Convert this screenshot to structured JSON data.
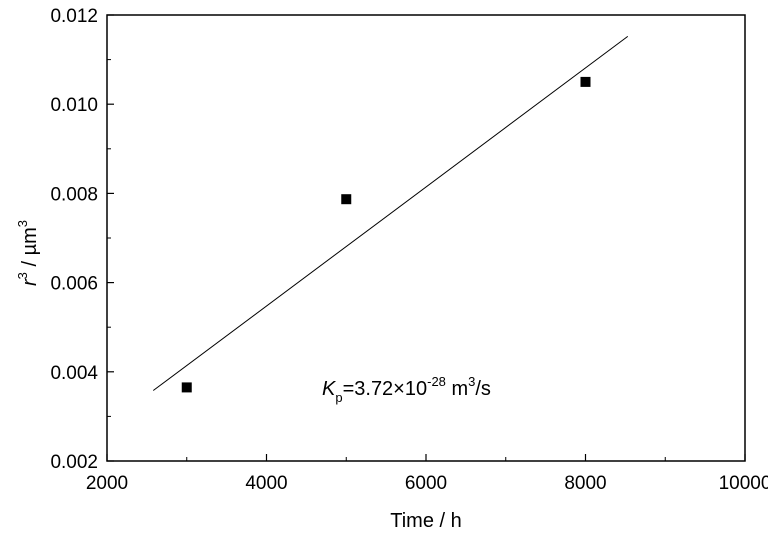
{
  "chart_data": {
    "type": "scatter",
    "xlabel": "Time / h",
    "ylabel": {
      "var": "r",
      "sup": "3",
      "rest": " / µm",
      "unit_sup": "3"
    },
    "xlim": [
      2000,
      10000
    ],
    "ylim": [
      0.002,
      0.012
    ],
    "x_ticks": [
      2000,
      4000,
      6000,
      8000,
      10000
    ],
    "x_tick_labels": [
      "2000",
      "4000",
      "6000",
      "8000",
      "10000"
    ],
    "y_ticks": [
      0.002,
      0.004,
      0.006,
      0.008,
      0.01,
      0.012
    ],
    "y_tick_labels": [
      "0.002",
      "0.004",
      "0.006",
      "0.008",
      "0.010",
      "0.012"
    ],
    "grid": false,
    "points": [
      {
        "x": 3000,
        "y": 0.00365
      },
      {
        "x": 5000,
        "y": 0.00787
      },
      {
        "x": 8000,
        "y": 0.0105
      }
    ],
    "fit_line": {
      "x": [
        2580,
        8530
      ],
      "y": [
        0.00358,
        0.01152
      ]
    },
    "annotation": {
      "var": "K",
      "sub": "p",
      "mid": "=3.72×10",
      "exp": "-28",
      "unit": " m",
      "unit_exp": "3",
      "tail": "/s"
    }
  }
}
